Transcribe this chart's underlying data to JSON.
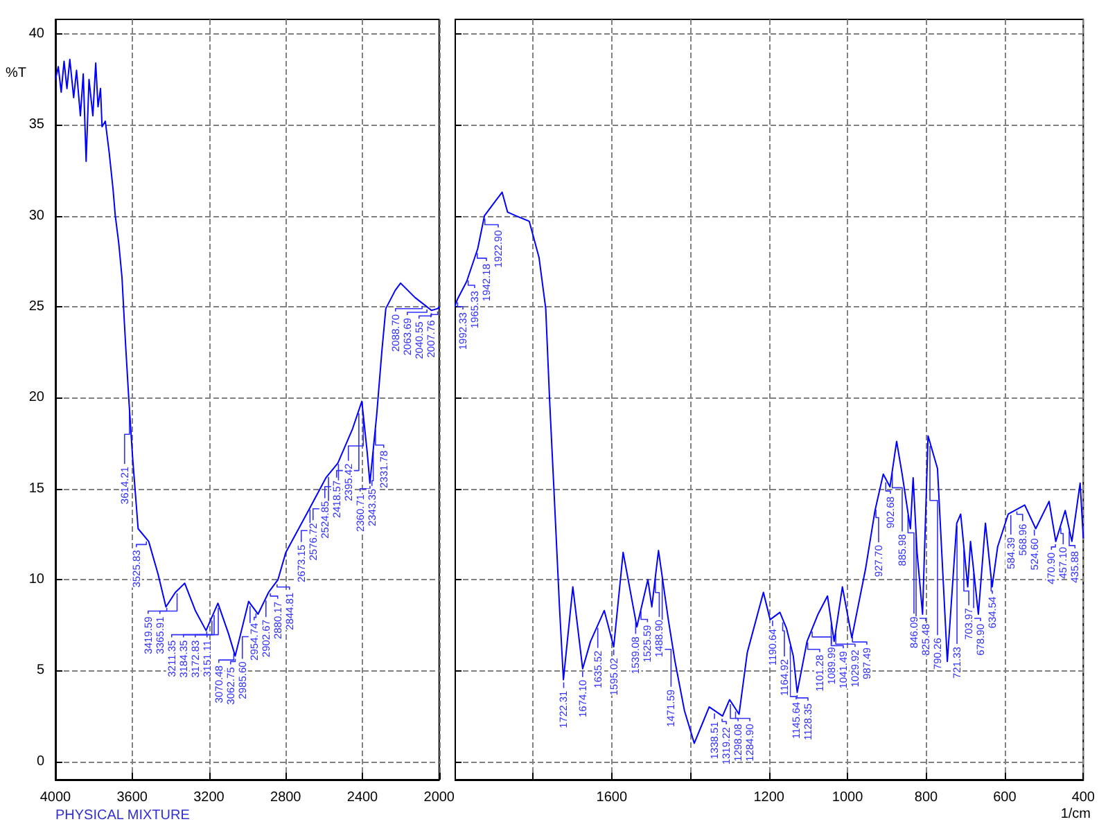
{
  "chart_data": [
    {
      "type": "line",
      "ylabel": "%T",
      "xlim": [
        4000,
        2000
      ],
      "xticks": [
        4000,
        3600,
        3200,
        2800,
        2400,
        2000
      ],
      "ylim": [
        -1,
        40.8
      ],
      "yticks": [
        0,
        5,
        10,
        15,
        20,
        25,
        30,
        35,
        40
      ],
      "grid": true,
      "line_style": "solid",
      "x": [
        4000,
        3985,
        3970,
        3955,
        3940,
        3925,
        3905,
        3890,
        3870,
        3855,
        3840,
        3825,
        3805,
        3790,
        3778,
        3765,
        3757,
        3740,
        3720,
        3700,
        3688,
        3670,
        3653,
        3640,
        3632,
        3618,
        3597,
        3569,
        3514,
        3465,
        3424,
        3375,
        3326,
        3271,
        3215,
        3153,
        3097,
        3063,
        2993,
        2944,
        2889,
        2840,
        2799,
        2681,
        2590,
        2528,
        2451,
        2403,
        2375,
        2361,
        2326,
        2299,
        2278,
        2229,
        2201,
        2125,
        2076,
        2040,
        2007,
        2000
      ],
      "series": [
        {
          "color": "#0000ff",
          "values": [
            37.5,
            38.2,
            36.8,
            38.5,
            37.0,
            38.6,
            36.5,
            38.0,
            35.5,
            37.8,
            33.0,
            37.5,
            35.5,
            38.4,
            36.0,
            37.0,
            34.9,
            35.2,
            33.5,
            31.5,
            30.0,
            28.5,
            26.6,
            24.0,
            22.5,
            20.0,
            16.6,
            12.8,
            12.1,
            10.3,
            8.5,
            9.3,
            9.8,
            8.3,
            7.2,
            8.7,
            7.0,
            5.8,
            8.8,
            8.1,
            9.3,
            10.0,
            11.5,
            13.8,
            15.6,
            16.4,
            18.3,
            19.8,
            17.0,
            15.3,
            19.0,
            22.5,
            24.9,
            25.9,
            26.3,
            25.5,
            25.1,
            24.8,
            24.9,
            25.0
          ]
        }
      ],
      "annotations": [
        "PHYSICAL MIXTURE",
        {
          "text": "3614.21",
          "x": 3614.21,
          "y": 19.4
        },
        {
          "text": "3525.83",
          "x": 3525.83,
          "y": 12.25
        },
        {
          "text": "3419.59",
          "x": 3419.59,
          "y": 8.6
        },
        {
          "text": "3365.91",
          "x": 3365.91,
          "y": 9.4
        },
        {
          "text": "3211.35",
          "x": 3211.35,
          "y": 7.3
        },
        {
          "text": "3184.35",
          "x": 3184.35,
          "y": 7.9
        },
        {
          "text": "3172.83",
          "x": 3172.83,
          "y": 8.2
        },
        {
          "text": "3151.11",
          "x": 3151.11,
          "y": 8.6
        },
        {
          "text": "3070.48",
          "x": 3070.48,
          "y": 6.1
        },
        {
          "text": "3062.75",
          "x": 3062.75,
          "y": 5.8
        },
        {
          "text": "2985.60",
          "x": 2985.6,
          "y": 8.7
        },
        {
          "text": "2954.74",
          "x": 2954.74,
          "y": 8.3
        },
        {
          "text": "2902.67",
          "x": 2902.67,
          "y": 9.0
        },
        {
          "text": "2880.17",
          "x": 2880.17,
          "y": 9.4
        },
        {
          "text": "2844.81",
          "x": 2844.81,
          "y": 9.9
        },
        {
          "text": "2673.15",
          "x": 2673.15,
          "y": 14.0
        },
        {
          "text": "2576.72",
          "x": 2576.72,
          "y": 15.8
        },
        {
          "text": "2524.85",
          "x": 2524.85,
          "y": 16.5
        },
        {
          "text": "2418.57",
          "x": 2418.57,
          "y": 19.3
        },
        {
          "text": "2395.42",
          "x": 2395.42,
          "y": 19.2
        },
        {
          "text": "2360.71",
          "x": 2360.71,
          "y": 15.3
        },
        {
          "text": "2343.35",
          "x": 2343.35,
          "y": 17.2
        },
        {
          "text": "2331.78",
          "x": 2331.78,
          "y": 18.4
        },
        {
          "text": "2088.70",
          "x": 2088.7,
          "y": 25.2
        },
        {
          "text": "2063.69",
          "x": 2063.69,
          "y": 25.0
        },
        {
          "text": "2040.55",
          "x": 2040.55,
          "y": 24.8
        },
        {
          "text": "2007.76",
          "x": 2007.76,
          "y": 24.9
        }
      ]
    },
    {
      "type": "line",
      "xlabel": "1/cm",
      "xlim": [
        2000,
        400
      ],
      "xticks": [
        {
          "value": 1800,
          "label": null
        },
        1600,
        {
          "value": 1400,
          "label": null
        },
        1200,
        1000,
        800,
        600,
        400
      ],
      "ylim": [
        -1,
        40.8
      ],
      "yticks": [
        0,
        5,
        10,
        15,
        20,
        25,
        30,
        35,
        40
      ],
      "grid": true,
      "line_style": "solid",
      "tick_labels": "x",
      "x": [
        2000,
        1993,
        1969,
        1941,
        1924,
        1900,
        1879,
        1865,
        1844,
        1810,
        1785,
        1768,
        1758,
        1747,
        1733,
        1723,
        1699,
        1674,
        1654,
        1619,
        1595,
        1571,
        1536,
        1508,
        1498,
        1481,
        1456,
        1439,
        1415,
        1390,
        1352,
        1318,
        1300,
        1276,
        1255,
        1214,
        1197,
        1172,
        1155,
        1138,
        1128,
        1103,
        1075,
        1051,
        1034,
        1013,
        989,
        954,
        930,
        909,
        892,
        875,
        861,
        840,
        833,
        823,
        809,
        795,
        771,
        746,
        722,
        712,
        694,
        687,
        667,
        649,
        632,
        618,
        591,
        549,
        521,
        487,
        470,
        446,
        429,
        408,
        400
      ],
      "series": [
        {
          "color": "#0000ff",
          "values": [
            25.0,
            25.4,
            26.4,
            28.2,
            30.0,
            30.7,
            31.3,
            30.2,
            30.0,
            29.7,
            27.7,
            24.9,
            19.8,
            14.9,
            8.5,
            4.5,
            9.6,
            5.1,
            6.6,
            8.3,
            6.3,
            11.5,
            7.4,
            10.0,
            8.5,
            11.6,
            7.8,
            5.5,
            2.8,
            1.0,
            3.0,
            2.5,
            3.4,
            2.6,
            6.0,
            9.3,
            7.8,
            8.2,
            7.3,
            5.8,
            3.8,
            6.6,
            8.1,
            9.1,
            6.6,
            9.6,
            6.8,
            10.6,
            13.8,
            15.8,
            15.1,
            17.6,
            15.8,
            12.8,
            15.6,
            11.5,
            8.1,
            17.9,
            16.1,
            5.5,
            13.1,
            13.6,
            9.6,
            12.1,
            8.1,
            13.1,
            9.6,
            11.8,
            13.6,
            14.1,
            12.8,
            14.3,
            12.1,
            13.8,
            12.1,
            15.3,
            12.3
          ]
        }
      ],
      "annotations": [
        {
          "text": "1992.33",
          "x": 1992.33,
          "y": 25.4
        },
        {
          "text": "1965.33",
          "x": 1965.33,
          "y": 26.6
        },
        {
          "text": "1942.18",
          "x": 1942.18,
          "y": 28.1
        },
        {
          "text": "1922.90",
          "x": 1922.9,
          "y": 30.0
        },
        {
          "text": "1722.31",
          "x": 1722.31,
          "y": 4.5
        },
        {
          "text": "1674.10",
          "x": 1674.1,
          "y": 5.1
        },
        {
          "text": "1635.52",
          "x": 1635.52,
          "y": 7.5
        },
        {
          "text": "1595.02",
          "x": 1595.02,
          "y": 6.3
        },
        {
          "text": "1539.08",
          "x": 1539.08,
          "y": 7.8
        },
        {
          "text": "1525.59",
          "x": 1525.59,
          "y": 8.4
        },
        {
          "text": "1488.90",
          "x": 1488.9,
          "y": 10.2
        },
        {
          "text": "1471.59",
          "x": 1471.59,
          "y": 10.2
        },
        {
          "text": "1338.51",
          "x": 1338.51,
          "y": 2.8
        },
        {
          "text": "1319.22",
          "x": 1319.22,
          "y": 2.5
        },
        {
          "text": "1298.08",
          "x": 1298.08,
          "y": 3.3
        },
        {
          "text": "1284.90",
          "x": 1284.9,
          "y": 2.9
        },
        {
          "text": "1190.64",
          "x": 1190.64,
          "y": 7.9
        },
        {
          "text": "1164.92",
          "x": 1164.92,
          "y": 7.8
        },
        {
          "text": "1145.64",
          "x": 1145.64,
          "y": 6.5
        },
        {
          "text": "1128.35",
          "x": 1128.35,
          "y": 3.8
        },
        {
          "text": "1101.28",
          "x": 1101.28,
          "y": 6.7
        },
        {
          "text": "1089.99",
          "x": 1089.99,
          "y": 7.3
        },
        {
          "text": "1041.49",
          "x": 1041.49,
          "y": 7.7
        },
        {
          "text": "1029.92",
          "x": 1029.92,
          "y": 7.2
        },
        {
          "text": "987.49",
          "x": 987.49,
          "y": 7.0
        },
        {
          "text": "927.70",
          "x": 927.7,
          "y": 14.0
        },
        {
          "text": "902.68",
          "x": 902.68,
          "y": 15.5
        },
        {
          "text": "885.98",
          "x": 885.98,
          "y": 16.0
        },
        {
          "text": "846.09",
          "x": 846.09,
          "y": 13.7
        },
        {
          "text": "825.48",
          "x": 825.48,
          "y": 12.5
        },
        {
          "text": "790.26",
          "x": 790.26,
          "y": 17.5
        },
        {
          "text": "721.33",
          "x": 721.33,
          "y": 13.1
        },
        {
          "text": "703.97",
          "x": 703.97,
          "y": 11.8
        },
        {
          "text": "678.90",
          "x": 678.9,
          "y": 10.5
        },
        {
          "text": "634.54",
          "x": 634.54,
          "y": 10.1
        },
        {
          "text": "584.39",
          "x": 584.39,
          "y": 13.7
        },
        {
          "text": "568.96",
          "x": 568.96,
          "y": 13.9
        },
        {
          "text": "524.60",
          "x": 524.6,
          "y": 12.9
        },
        {
          "text": "470.90",
          "x": 470.9,
          "y": 12.1
        },
        {
          "text": "457.10",
          "x": 457.1,
          "y": 13.0
        },
        {
          "text": "435.88",
          "x": 435.88,
          "y": 12.8
        }
      ]
    }
  ]
}
